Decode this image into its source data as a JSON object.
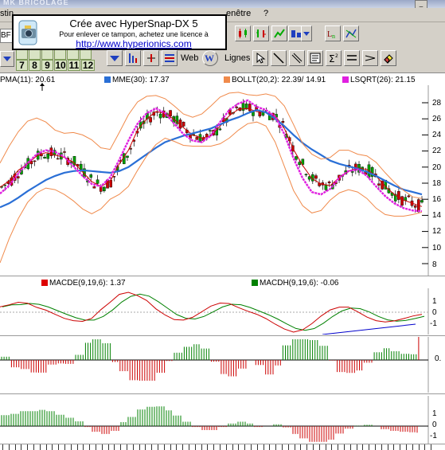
{
  "window": {
    "title": "MK BRICOLAGE",
    "minimize_label": "_"
  },
  "menu": [
    {
      "label": "stin"
    },
    {
      "label": "enêtre"
    },
    {
      "label": "?"
    }
  ],
  "toolbar": {
    "symbol_value": "BF",
    "number_keys": [
      "7",
      "8",
      "9",
      "10",
      "11",
      "12"
    ],
    "web_label": "Web",
    "web_icon_label": "W",
    "lines_label": "Lignes",
    "icons": [
      "candlestick-chart-icon",
      "ohlc-chart-icon",
      "line-chart-icon",
      "dropdown-arrow-icon",
      "chart-zoom-icon",
      "chart-options-icon",
      "cursor-icon",
      "line-tool-icon",
      "parallel-lines-icon",
      "text-note-icon",
      "sigma-icon",
      "equal-lines-icon",
      "arrow-right-icon",
      "eraser-icon"
    ]
  },
  "stamp": {
    "line1": "Crée avec HyperSnap-DX 5",
    "line2": "Pour enlever ce tampon, achetez une licence à",
    "line3": "http://www.hyperionics.com"
  },
  "price_panel": {
    "legends": [
      {
        "label": "PMA(11): 20.61",
        "color": "#cc0000"
      },
      {
        "label": "MME(30): 17.37",
        "color": "#2a6fd6"
      },
      {
        "label": "BOLLT(20,2): 22.39/ 14.91",
        "color": "#f08a4b"
      },
      {
        "label": "LSQRT(26): 21.15",
        "color": "#e020e0"
      }
    ],
    "y_ticks": [
      "28",
      "26",
      "24",
      "22",
      "20",
      "18",
      "16",
      "14",
      "12",
      "10",
      "8"
    ]
  },
  "macd_panel": {
    "legends": [
      {
        "label": "MACDE(9,19,6):  1.37",
        "color": "#dd0000"
      },
      {
        "label": "MACDH(9,19,6): -0.06",
        "color": "#008000"
      }
    ],
    "y_ticks": [
      "1",
      "0",
      "-1"
    ]
  },
  "histo_panel": {
    "y_ticks": [
      "0."
    ]
  },
  "osc_panel": {
    "y_ticks": [
      "1",
      "0",
      "-1"
    ]
  },
  "colors": {
    "bull_candle": "#00a000",
    "bear_candle": "#cc0000",
    "mme_line": "#2a6fd6",
    "pma_line": "#cc0000",
    "bollinger": "#f08a4b",
    "lsqrt": "#e020e0",
    "histogram_up": "#008000",
    "histogram_down": "#cc0000",
    "trend_line": "#0000cc"
  },
  "chart_data": {
    "type": "line",
    "title": "",
    "ylim": [
      7,
      29
    ],
    "series": [
      {
        "name": "PMA(11)",
        "values": [
          17.5,
          18.3,
          19.6,
          20.4,
          21.4,
          21.8,
          21.5,
          21.2,
          20.6,
          19.4,
          18.2,
          17.6,
          18.2,
          20.4,
          22.1,
          24.6,
          26.0,
          26.9,
          26.7,
          25.9,
          24.9,
          24.0,
          23.6,
          23.9,
          25.1,
          26.4,
          27.2,
          27.3,
          26.9,
          26.8,
          26.4,
          24.8,
          22.2,
          20.2,
          18.6,
          17.9,
          17.7,
          18.7,
          19.5,
          19.9,
          19.7,
          18.9,
          17.6,
          16.6,
          15.9,
          15.5,
          15.1
        ]
      },
      {
        "name": "MME(30)",
        "values": [
          15.0,
          15.5,
          16.2,
          17.0,
          17.7,
          18.4,
          18.9,
          19.3,
          19.5,
          19.6,
          19.5,
          19.4,
          19.3,
          19.5,
          20.0,
          20.8,
          21.6,
          22.4,
          23.1,
          23.5,
          23.9,
          24.2,
          24.5,
          24.8,
          25.3,
          25.8,
          26.2,
          26.7,
          27.1,
          26.8,
          26.0,
          25.1,
          24.0,
          23.0,
          22.2,
          21.5,
          20.8,
          20.4,
          20.1,
          19.8,
          19.4,
          18.9,
          18.3,
          17.7,
          17.2,
          16.9,
          16.6
        ]
      },
      {
        "name": "LSQRT(26)",
        "values": [
          16.7,
          17.7,
          19.2,
          20.5,
          21.6,
          22.1,
          21.9,
          21.3,
          20.1,
          18.9,
          17.9,
          17.6,
          18.7,
          20.9,
          23.3,
          25.4,
          26.7,
          27.3,
          26.7,
          25.4,
          24.1,
          23.3,
          23.1,
          23.9,
          25.6,
          27.1,
          27.9,
          28.3,
          27.5,
          27.1,
          26.3,
          24.1,
          21.1,
          18.6,
          16.9,
          16.6,
          17.3,
          18.7,
          19.5,
          19.7,
          18.9,
          17.6,
          16.4,
          15.5,
          14.9,
          14.6,
          14.5
        ]
      },
      {
        "name": "BOLLT upper",
        "values": [
          20.5,
          22.6,
          24.4,
          25.7,
          26.1,
          25.6,
          24.6,
          24.2,
          24.3,
          24.0,
          23.4,
          22.4,
          22.2,
          24.3,
          26.5,
          28.1,
          28.8,
          28.9,
          28.5,
          27.6,
          26.6,
          26.2,
          26.6,
          27.6,
          28.7,
          29.2,
          29.3,
          29.0,
          28.9,
          29.1,
          28.8,
          27.6,
          25.3,
          22.9,
          21.6,
          21.0,
          21.2,
          22.1,
          22.1,
          21.6,
          21.4,
          20.6,
          19.3,
          18.1,
          17.1,
          16.3,
          16.1
        ]
      },
      {
        "name": "BOLLT lower",
        "values": [
          8.1,
          11.1,
          13.6,
          15.6,
          16.8,
          17.4,
          17.2,
          16.6,
          15.8,
          14.8,
          14.2,
          14.8,
          16.0,
          16.6,
          17.6,
          19.6,
          21.4,
          22.8,
          23.6,
          23.2,
          22.7,
          22.6,
          22.6,
          22.6,
          22.9,
          23.6,
          24.6,
          25.4,
          25.6,
          25.1,
          23.1,
          20.1,
          17.1,
          15.2,
          14.3,
          14.6,
          15.9,
          16.8,
          17.2,
          16.9,
          16.1,
          14.9,
          14.1,
          13.9,
          13.9,
          14.1,
          14.4
        ]
      }
    ]
  }
}
